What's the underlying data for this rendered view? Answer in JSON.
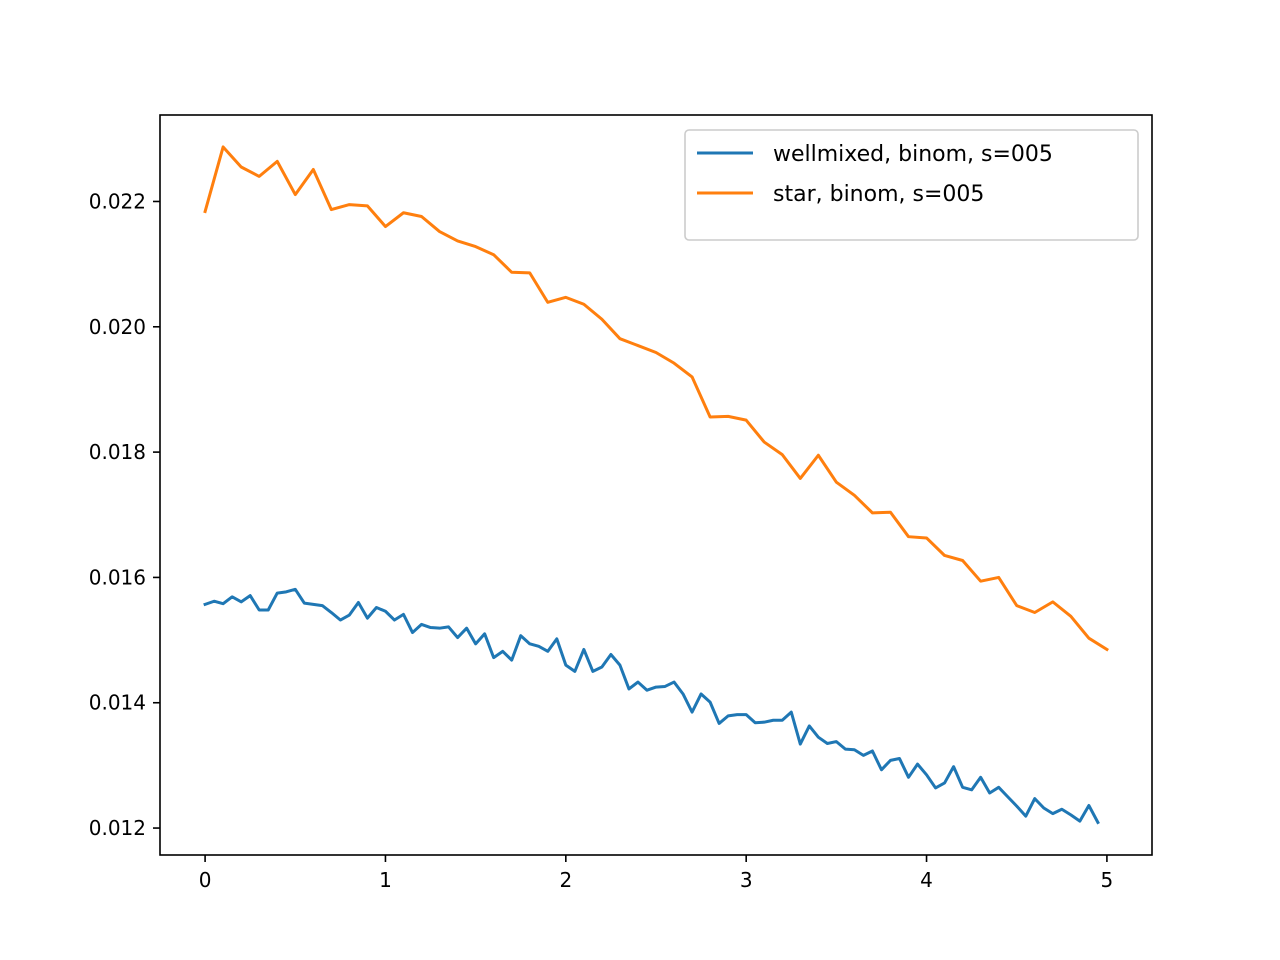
{
  "chart_data": {
    "type": "line",
    "title": "",
    "xlabel": "",
    "ylabel": "",
    "xlim": [
      -0.25,
      5.25
    ],
    "ylim": [
      0.01157,
      0.02338
    ],
    "xticks": [
      0,
      1,
      2,
      3,
      4,
      5
    ],
    "xtick_labels": [
      "0",
      "1",
      "2",
      "3",
      "4",
      "5"
    ],
    "yticks": [
      0.012,
      0.014,
      0.016,
      0.018,
      0.02,
      0.022
    ],
    "ytick_labels": [
      "0.012",
      "0.014",
      "0.016",
      "0.018",
      "0.020",
      "0.022"
    ],
    "grid": false,
    "legend_position": "top-right",
    "series": [
      {
        "name": "wellmixed, binom, s=005",
        "color": "#1f77b4",
        "x": [
          0,
          0.05,
          0.1,
          0.15,
          0.2,
          0.25,
          0.3,
          0.35,
          0.4,
          0.45,
          0.5,
          0.55,
          0.6,
          0.65,
          0.7,
          0.75,
          0.8,
          0.85,
          0.9,
          0.95,
          1.0,
          1.05,
          1.1,
          1.15,
          1.2,
          1.25,
          1.3,
          1.35,
          1.4,
          1.45,
          1.5,
          1.55,
          1.6,
          1.65,
          1.7,
          1.75,
          1.8,
          1.85,
          1.9,
          1.95,
          2.0,
          2.05,
          2.1,
          2.15,
          2.2,
          2.25,
          2.3,
          2.35,
          2.4,
          2.45,
          2.5,
          2.55,
          2.6,
          2.65,
          2.7,
          2.75,
          2.8,
          2.85,
          2.9,
          2.95,
          3.0,
          3.05,
          3.1,
          3.15,
          3.2,
          3.25,
          3.3,
          3.35,
          3.4,
          3.45,
          3.5,
          3.55,
          3.6,
          3.65,
          3.7,
          3.75,
          3.8,
          3.85,
          3.9,
          3.95,
          4.0,
          4.05,
          4.1,
          4.15,
          4.2,
          4.25,
          4.3,
          4.35,
          4.4,
          4.45,
          4.5,
          4.55,
          4.6,
          4.65,
          4.7,
          4.75,
          4.8,
          4.85,
          4.9,
          4.95
        ],
        "values": [
          0.01557,
          0.01562,
          0.01558,
          0.01569,
          0.01561,
          0.01571,
          0.01548,
          0.01548,
          0.01575,
          0.01577,
          0.01581,
          0.01559,
          0.01557,
          0.01555,
          0.01544,
          0.01532,
          0.0154,
          0.0156,
          0.01535,
          0.01552,
          0.01546,
          0.01532,
          0.01541,
          0.01512,
          0.01525,
          0.0152,
          0.01519,
          0.01521,
          0.01504,
          0.01519,
          0.01494,
          0.0151,
          0.01472,
          0.01482,
          0.01468,
          0.01507,
          0.01494,
          0.0149,
          0.01482,
          0.01502,
          0.0146,
          0.0145,
          0.01485,
          0.0145,
          0.01457,
          0.01477,
          0.0146,
          0.01422,
          0.01433,
          0.0142,
          0.01425,
          0.01426,
          0.01433,
          0.01414,
          0.01385,
          0.01414,
          0.01401,
          0.01367,
          0.01379,
          0.01381,
          0.01381,
          0.01368,
          0.01369,
          0.01372,
          0.01372,
          0.01385,
          0.01334,
          0.01363,
          0.01345,
          0.01335,
          0.01338,
          0.01326,
          0.01325,
          0.01316,
          0.01323,
          0.01293,
          0.01308,
          0.01311,
          0.01281,
          0.01302,
          0.01285,
          0.01264,
          0.01272,
          0.01298,
          0.01265,
          0.01261,
          0.01281,
          0.01256,
          0.01265,
          0.0125,
          0.01235,
          0.01219,
          0.01247,
          0.01232,
          0.01223,
          0.0123,
          0.01221,
          0.01211,
          0.01236,
          0.01209
        ]
      },
      {
        "name": "star, binom, s=005",
        "color": "#ff7f0e",
        "x": [
          0,
          0.1,
          0.2,
          0.3,
          0.4,
          0.5,
          0.6,
          0.7,
          0.8,
          0.9,
          1.0,
          1.1,
          1.2,
          1.3,
          1.4,
          1.5,
          1.6,
          1.7,
          1.8,
          1.9,
          2.0,
          2.1,
          2.2,
          2.3,
          2.4,
          2.5,
          2.6,
          2.7,
          2.8,
          2.9,
          3.0,
          3.1,
          3.2,
          3.3,
          3.4,
          3.5,
          3.6,
          3.7,
          3.8,
          3.9,
          4.0,
          4.1,
          4.2,
          4.3,
          4.4,
          4.5,
          4.6,
          4.7,
          4.8,
          4.9,
          5.0
        ],
        "values": [
          0.02184,
          0.02287,
          0.02255,
          0.0224,
          0.02264,
          0.02211,
          0.02251,
          0.02187,
          0.02195,
          0.02193,
          0.0216,
          0.02182,
          0.02176,
          0.02152,
          0.02137,
          0.02128,
          0.02115,
          0.02087,
          0.02086,
          0.02039,
          0.02047,
          0.02036,
          0.02012,
          0.01981,
          0.0197,
          0.01959,
          0.01942,
          0.0192,
          0.01856,
          0.01857,
          0.01851,
          0.01816,
          0.01796,
          0.01758,
          0.01795,
          0.01752,
          0.01731,
          0.01703,
          0.01704,
          0.01665,
          0.01663,
          0.01635,
          0.01627,
          0.01594,
          0.016,
          0.01555,
          0.01544,
          0.01561,
          0.01538,
          0.01503,
          0.01485
        ]
      }
    ]
  }
}
